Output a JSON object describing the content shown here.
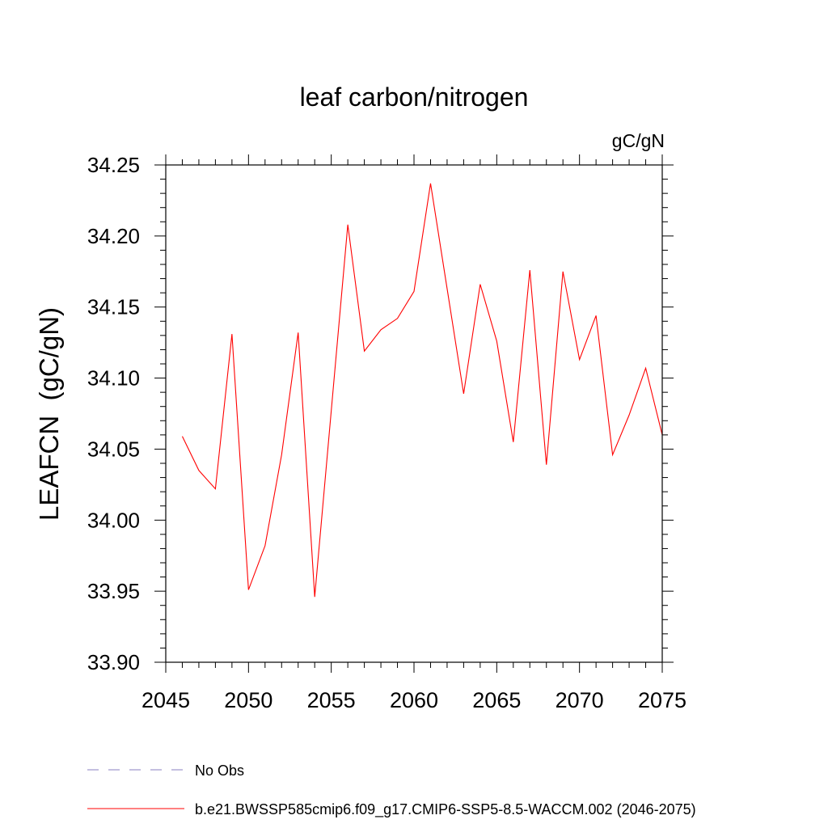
{
  "chart_data": {
    "type": "line",
    "title": "leaf carbon/nitrogen",
    "units_label": "gC/gN",
    "ylabel": "LEAFCN  (gC/gN)",
    "xlabel": "",
    "xlim": [
      2045,
      2075
    ],
    "ylim": [
      33.9,
      34.25
    ],
    "x_ticks": [
      2045,
      2050,
      2055,
      2060,
      2065,
      2070,
      2075
    ],
    "x_tick_labels": [
      "2045",
      "2050",
      "2055",
      "2060",
      "2065",
      "2070",
      "2075"
    ],
    "y_ticks": [
      33.9,
      33.95,
      34.0,
      34.05,
      34.1,
      34.15,
      34.2,
      34.25
    ],
    "y_tick_labels": [
      "33.90",
      "33.95",
      "34.00",
      "34.05",
      "34.10",
      "34.15",
      "34.20",
      "34.25"
    ],
    "grid": false,
    "series": [
      {
        "name": "b.e21.BWSSP585cmip6.f09_g17.CMIP6-SSP5-8.5-WACCM.002 (2046-2075)",
        "color": "#ff0000",
        "style": "solid",
        "x": [
          2046,
          2047,
          2048,
          2049,
          2050,
          2051,
          2052,
          2053,
          2054,
          2055,
          2056,
          2057,
          2058,
          2059,
          2060,
          2061,
          2062,
          2063,
          2064,
          2065,
          2066,
          2067,
          2068,
          2069,
          2070,
          2071,
          2072,
          2073,
          2074,
          2075
        ],
        "values": [
          34.059,
          34.035,
          34.022,
          34.131,
          33.951,
          33.982,
          34.046,
          34.132,
          33.946,
          34.077,
          34.208,
          34.119,
          34.134,
          34.142,
          34.161,
          34.237,
          34.163,
          34.089,
          34.166,
          34.126,
          34.055,
          34.176,
          34.039,
          34.175,
          34.113,
          34.144,
          34.046,
          34.074,
          34.107,
          34.06
        ]
      }
    ],
    "legend": [
      {
        "label": "No Obs",
        "color": "#8a7fc0",
        "style": "dashed"
      },
      {
        "label": "b.e21.BWSSP585cmip6.f09_g17.CMIP6-SSP5-8.5-WACCM.002 (2046-2075)",
        "color": "#ff0000",
        "style": "solid"
      }
    ]
  }
}
